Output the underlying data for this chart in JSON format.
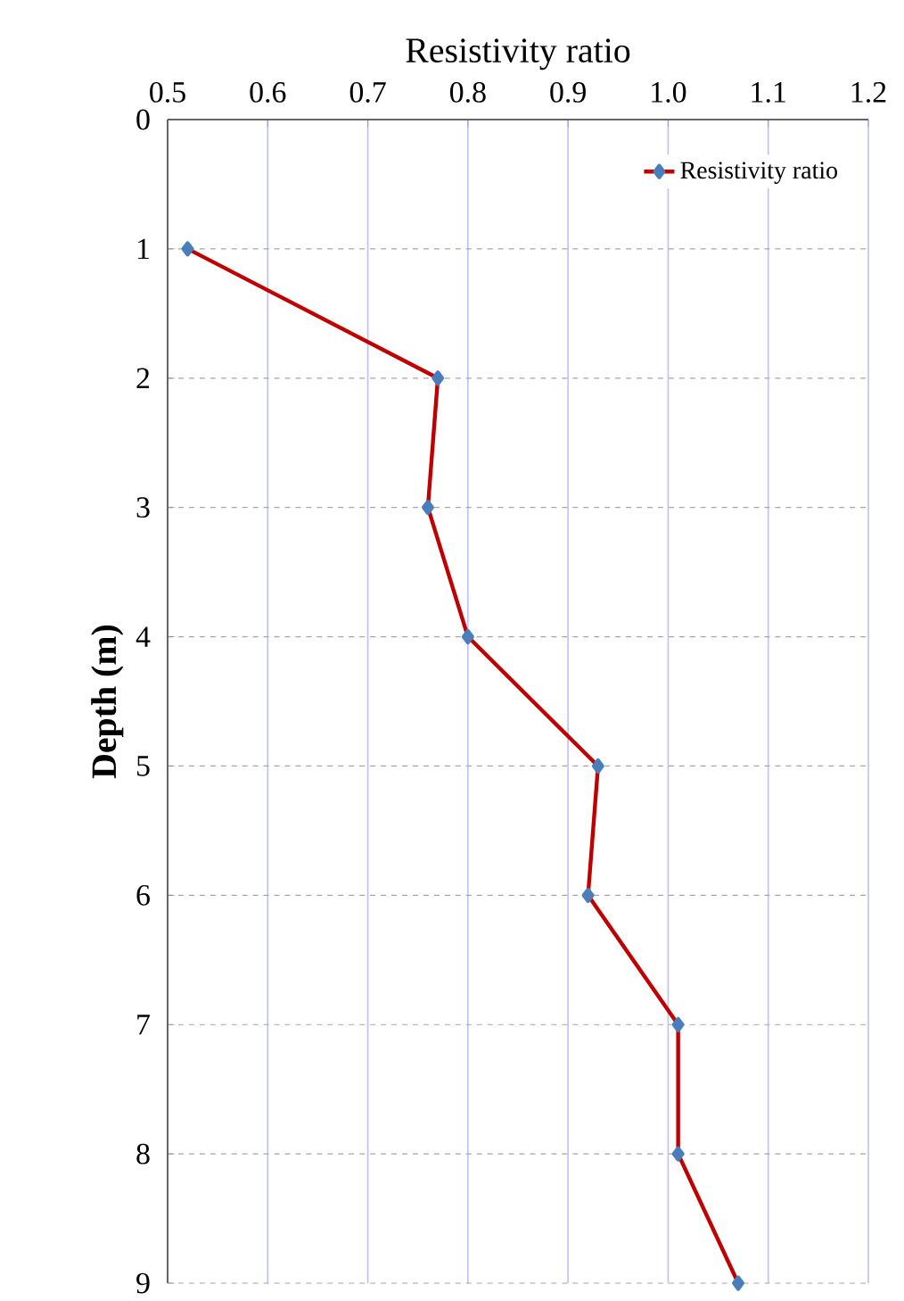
{
  "chart_data": {
    "type": "line",
    "xlabel": "Resistivity ratio",
    "ylabel": "Depth (m)",
    "xlim": [
      0.5,
      1.2
    ],
    "xticks": [
      0.5,
      0.6,
      0.7,
      0.8,
      0.9,
      {
        "value": 1,
        "label": "1.0"
      },
      1.1,
      1.2
    ],
    "ylim": [
      9,
      0
    ],
    "yticks": [
      0,
      1,
      2,
      3,
      4,
      5,
      6,
      7,
      8,
      9
    ],
    "grid": true,
    "legend": "top right",
    "marker": "diamond",
    "line_style": "solid",
    "series": [
      {
        "name": "Resistivity ratio",
        "color": "#c00000",
        "x": [
          0.52,
          0.77,
          0.76,
          0.8,
          0.93,
          0.92,
          1.01,
          1.01,
          1.07
        ],
        "values": [
          1,
          2,
          3,
          4,
          5,
          6,
          7,
          8,
          9
        ]
      }
    ]
  }
}
